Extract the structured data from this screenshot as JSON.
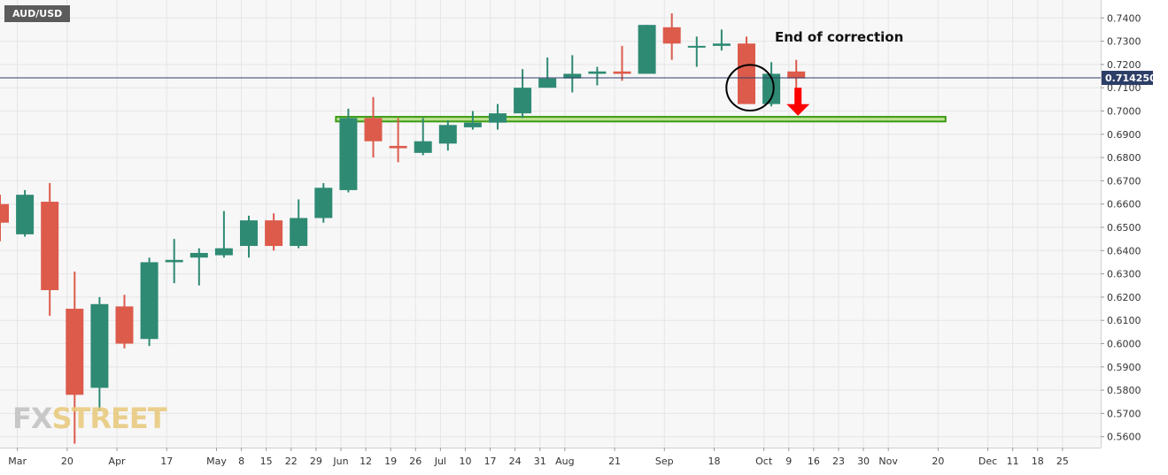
{
  "symbol": "AUD/USD",
  "last_price_label": "0.714250",
  "watermark": {
    "part1": "FX",
    "part2": "STREET"
  },
  "annotations": {
    "callout": "End of correction"
  },
  "colors": {
    "up": "#2f8a73",
    "down": "#dc5b4b",
    "support_zone": "#3c9b14",
    "support_fill": "#bde18e",
    "arrow": "#ff0000",
    "price_line": "#2c3e67",
    "grid": "#e6e6e6",
    "plot_background": "#f7f7f8"
  },
  "chart_data": {
    "type": "candlestick",
    "title": "AUD/USD",
    "timeframe": "weekly",
    "ylim": [
      0.557,
      0.746
    ],
    "grid": true,
    "price_scale_position": "right",
    "y_ticks": [
      0.56,
      0.57,
      0.58,
      0.59,
      0.6,
      0.61,
      0.62,
      0.63,
      0.64,
      0.65,
      0.66,
      0.67,
      0.68,
      0.69,
      0.7,
      0.71,
      0.72,
      0.73,
      0.74
    ],
    "x_tick_labels": [
      {
        "label": "Mar",
        "idx": 0.7
      },
      {
        "label": "20",
        "idx": 2.7
      },
      {
        "label": "Apr",
        "idx": 4.7
      },
      {
        "label": "17",
        "idx": 6.7
      },
      {
        "label": "May",
        "idx": 8.7
      },
      {
        "label": "8",
        "idx": 9.7
      },
      {
        "label": "15",
        "idx": 10.7
      },
      {
        "label": "22",
        "idx": 11.7
      },
      {
        "label": "29",
        "idx": 12.7
      },
      {
        "label": "Jun",
        "idx": 13.7
      },
      {
        "label": "12",
        "idx": 14.7
      },
      {
        "label": "19",
        "idx": 15.7
      },
      {
        "label": "26",
        "idx": 16.7
      },
      {
        "label": "Jul",
        "idx": 17.7
      },
      {
        "label": "10",
        "idx": 18.7
      },
      {
        "label": "17",
        "idx": 19.7
      },
      {
        "label": "24",
        "idx": 20.7
      },
      {
        "label": "31",
        "idx": 21.7
      },
      {
        "label": "Aug",
        "idx": 22.7
      },
      {
        "label": "21",
        "idx": 24.7
      },
      {
        "label": "Sep",
        "idx": 26.7
      },
      {
        "label": "18",
        "idx": 28.7
      },
      {
        "label": "Oct",
        "idx": 30.7
      },
      {
        "label": "9",
        "idx": 31.7
      },
      {
        "label": "16",
        "idx": 32.7
      },
      {
        "label": "23",
        "idx": 33.7
      },
      {
        "label": "30",
        "idx": 34.7
      },
      {
        "label": "Nov",
        "idx": 35.7
      },
      {
        "label": "20",
        "idx": 37.7
      },
      {
        "label": "Dec",
        "idx": 39.7
      },
      {
        "label": "11",
        "idx": 40.7
      },
      {
        "label": "18",
        "idx": 41.7
      },
      {
        "label": "25",
        "idx": 42.7
      }
    ],
    "candles": [
      {
        "o": 0.66,
        "h": 0.664,
        "l": 0.644,
        "c": 0.652
      },
      {
        "o": 0.647,
        "h": 0.666,
        "l": 0.646,
        "c": 0.664
      },
      {
        "o": 0.661,
        "h": 0.669,
        "l": 0.612,
        "c": 0.623
      },
      {
        "o": 0.615,
        "h": 0.631,
        "l": 0.557,
        "c": 0.578
      },
      {
        "o": 0.581,
        "h": 0.62,
        "l": 0.571,
        "c": 0.617
      },
      {
        "o": 0.616,
        "h": 0.621,
        "l": 0.598,
        "c": 0.6
      },
      {
        "o": 0.602,
        "h": 0.637,
        "l": 0.599,
        "c": 0.635
      },
      {
        "o": 0.635,
        "h": 0.645,
        "l": 0.626,
        "c": 0.636
      },
      {
        "o": 0.637,
        "h": 0.641,
        "l": 0.625,
        "c": 0.639
      },
      {
        "o": 0.638,
        "h": 0.657,
        "l": 0.637,
        "c": 0.641
      },
      {
        "o": 0.642,
        "h": 0.655,
        "l": 0.637,
        "c": 0.653
      },
      {
        "o": 0.653,
        "h": 0.656,
        "l": 0.64,
        "c": 0.642
      },
      {
        "o": 0.642,
        "h": 0.662,
        "l": 0.641,
        "c": 0.654
      },
      {
        "o": 0.654,
        "h": 0.669,
        "l": 0.652,
        "c": 0.667
      },
      {
        "o": 0.666,
        "h": 0.701,
        "l": 0.665,
        "c": 0.697
      },
      {
        "o": 0.697,
        "h": 0.706,
        "l": 0.68,
        "c": 0.687
      },
      {
        "o": 0.685,
        "h": 0.697,
        "l": 0.678,
        "c": 0.684
      },
      {
        "o": 0.682,
        "h": 0.697,
        "l": 0.681,
        "c": 0.687
      },
      {
        "o": 0.686,
        "h": 0.696,
        "l": 0.683,
        "c": 0.694
      },
      {
        "o": 0.693,
        "h": 0.7,
        "l": 0.692,
        "c": 0.695
      },
      {
        "o": 0.695,
        "h": 0.703,
        "l": 0.692,
        "c": 0.699
      },
      {
        "o": 0.699,
        "h": 0.718,
        "l": 0.697,
        "c": 0.71
      },
      {
        "o": 0.71,
        "h": 0.723,
        "l": 0.71,
        "c": 0.714
      },
      {
        "o": 0.714,
        "h": 0.724,
        "l": 0.708,
        "c": 0.716
      },
      {
        "o": 0.716,
        "h": 0.719,
        "l": 0.711,
        "c": 0.717
      },
      {
        "o": 0.717,
        "h": 0.728,
        "l": 0.713,
        "c": 0.716
      },
      {
        "o": 0.716,
        "h": 0.737,
        "l": 0.716,
        "c": 0.737
      },
      {
        "o": 0.736,
        "h": 0.742,
        "l": 0.722,
        "c": 0.729
      },
      {
        "o": 0.728,
        "h": 0.732,
        "l": 0.719,
        "c": 0.728
      },
      {
        "o": 0.728,
        "h": 0.735,
        "l": 0.726,
        "c": 0.729
      },
      {
        "o": 0.729,
        "h": 0.732,
        "l": 0.703,
        "c": 0.703
      },
      {
        "o": 0.703,
        "h": 0.721,
        "l": 0.702,
        "c": 0.716
      },
      {
        "o": 0.717,
        "h": 0.722,
        "l": 0.71,
        "c": 0.714
      }
    ],
    "support_zone": {
      "from_idx": 13.5,
      "to_idx": 38.0,
      "y_low": 0.6955,
      "y_high": 0.6975
    },
    "last_price": 0.71425,
    "highlight_ellipse": {
      "center_idx": 30.0,
      "center_price": 0.71,
      "radius_idx": 0.95,
      "radius_price": 0.0098
    },
    "down_arrow": {
      "idx": 32.0,
      "from_price": 0.71,
      "to_price": 0.698
    }
  }
}
